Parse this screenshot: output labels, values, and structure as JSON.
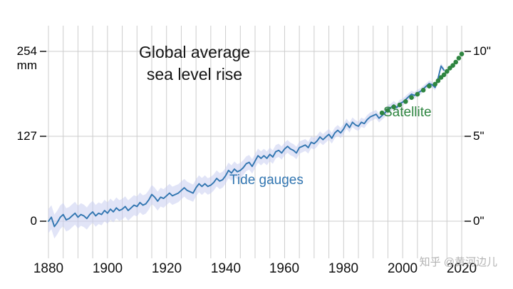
{
  "title": {
    "line1": "Global average",
    "line2": "sea level rise"
  },
  "series_labels": {
    "tide": "Tide gauges",
    "satellite": "Satellite"
  },
  "watermark": "知乎 @黄河边儿",
  "colors": {
    "tide": "#3276b1",
    "band": "#c9cdf0",
    "satellite": "#2e8540",
    "grid": "#cccccc",
    "tick": "#222222",
    "text": "#111111"
  },
  "chart_data": {
    "type": "line",
    "title": "Global average sea level rise",
    "x_range": [
      1880,
      2020
    ],
    "grid_step_years": 5,
    "y_gridlines_mm": [
      0,
      127,
      254
    ],
    "ylim_mm": [
      -30,
      280
    ],
    "left_ticks": [
      {
        "mm": 254,
        "label": "254"
      },
      {
        "mm": 127,
        "label": "127"
      },
      {
        "mm": 0,
        "label": "0"
      }
    ],
    "left_unit": "mm",
    "right_ticks": [
      {
        "mm": 254,
        "label": "10\""
      },
      {
        "mm": 127,
        "label": "5\""
      },
      {
        "mm": 0,
        "label": "0\""
      }
    ],
    "x_tick_labels": [
      "1880",
      "1900",
      "1920",
      "1940",
      "1960",
      "1980",
      "2000",
      "2020"
    ],
    "series": [
      {
        "name": "Tide gauges",
        "style": "line_with_band",
        "x_start": 1880,
        "x_step": 1,
        "y_mm": [
          0,
          6,
          -8,
          -2,
          6,
          10,
          2,
          4,
          8,
          12,
          6,
          10,
          8,
          4,
          10,
          14,
          8,
          12,
          10,
          16,
          12,
          18,
          14,
          20,
          16,
          18,
          22,
          16,
          20,
          24,
          22,
          28,
          24,
          26,
          32,
          40,
          36,
          30,
          36,
          34,
          38,
          42,
          38,
          40,
          42,
          46,
          50,
          46,
          44,
          42,
          50,
          56,
          52,
          56,
          52,
          54,
          58,
          64,
          60,
          62,
          68,
          76,
          72,
          78,
          74,
          76,
          80,
          86,
          88,
          82,
          90,
          98,
          94,
          98,
          94,
          100,
          96,
          104,
          106,
          102,
          108,
          112,
          108,
          106,
          102,
          110,
          112,
          114,
          110,
          118,
          116,
          120,
          126,
          122,
          126,
          130,
          124,
          132,
          136,
          132,
          138,
          146,
          140,
          148,
          144,
          142,
          148,
          146,
          152,
          156,
          158,
          160,
          154,
          158,
          162,
          168,
          170,
          174,
          170,
          176,
          178,
          182,
          186,
          190,
          188,
          192,
          194,
          198,
          202,
          206,
          204,
          200,
          214,
          232,
          226
        ],
        "band_halfwidth_start_mm": 18,
        "band_halfwidth_end_mm": 4
      },
      {
        "name": "Satellite",
        "style": "dots",
        "x": [
          1993,
          1995,
          1997,
          1999,
          2001,
          2003,
          2005,
          2007,
          2009,
          2011,
          2012,
          2013,
          2014,
          2015,
          2016,
          2017,
          2018,
          2019,
          2020
        ],
        "y_mm": [
          162,
          166,
          171,
          174,
          179,
          185,
          190,
          196,
          202,
          205,
          210,
          215,
          219,
          224,
          229,
          233,
          238,
          244,
          250
        ]
      }
    ]
  }
}
